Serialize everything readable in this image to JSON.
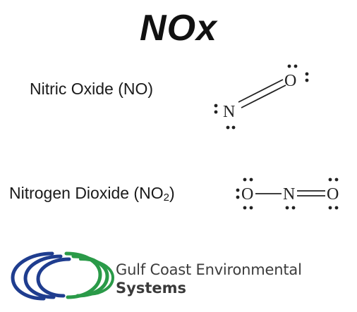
{
  "title": "NOx",
  "molecules": [
    {
      "name": "Nitric Oxide (NO)",
      "atoms": [
        "N",
        "O"
      ],
      "bonds": [
        "double"
      ]
    },
    {
      "name_prefix": "Nitrogen Dioxide (NO",
      "name_subscript": "2",
      "name_suffix": ")",
      "atoms": [
        "O",
        "N",
        "O"
      ],
      "bonds": [
        "single",
        "double"
      ]
    }
  ],
  "logo": {
    "line1": "Gulf Coast Environmental",
    "line2": "Systems",
    "colors": {
      "blue": "#1f3d8f",
      "green": "#2a9a48"
    }
  }
}
